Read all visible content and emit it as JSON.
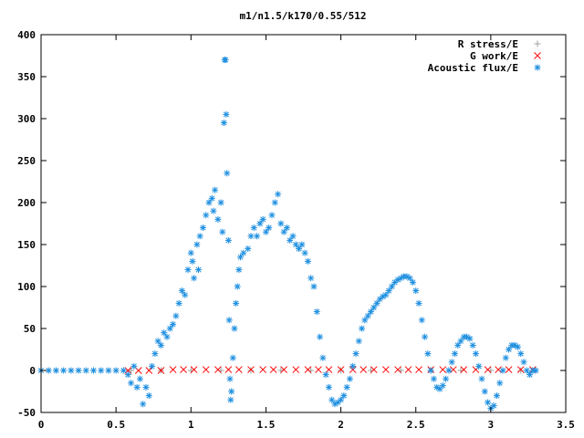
{
  "chart_data": {
    "type": "scatter",
    "title": "m1/n1.5/k170/0.55/512",
    "xlabel": "",
    "ylabel": "",
    "xlim": [
      0,
      3.5
    ],
    "ylim": [
      -50,
      400
    ],
    "x_ticks": [
      "0",
      "0.5",
      "1",
      "1.5",
      "2",
      "2.5",
      "3",
      "3.5"
    ],
    "y_ticks": [
      "-50",
      "0",
      "50",
      "100",
      "150",
      "200",
      "250",
      "300",
      "350",
      "400"
    ],
    "legend_position": "top-right",
    "grid": false,
    "series": [
      {
        "name": "R stress/E",
        "marker": "+",
        "color": "#a0a0a0",
        "points": [
          [
            0.6,
            0
          ],
          [
            0.8,
            0
          ],
          [
            1.0,
            0
          ],
          [
            1.2,
            0
          ],
          [
            1.4,
            0
          ],
          [
            1.6,
            0
          ],
          [
            1.8,
            0
          ],
          [
            2.0,
            0
          ],
          [
            2.2,
            0
          ],
          [
            2.4,
            0
          ],
          [
            2.6,
            0
          ],
          [
            2.8,
            0
          ],
          [
            3.0,
            0
          ],
          [
            3.2,
            0
          ]
        ]
      },
      {
        "name": "G work/E",
        "marker": "x",
        "color": "#ff0000",
        "points": [
          [
            0.58,
            0
          ],
          [
            0.65,
            0
          ],
          [
            0.72,
            0
          ],
          [
            0.8,
            0
          ],
          [
            0.88,
            1
          ],
          [
            0.95,
            1
          ],
          [
            1.02,
            1
          ],
          [
            1.1,
            1
          ],
          [
            1.18,
            1
          ],
          [
            1.25,
            1
          ],
          [
            1.32,
            1
          ],
          [
            1.4,
            1
          ],
          [
            1.48,
            1
          ],
          [
            1.55,
            1
          ],
          [
            1.62,
            1
          ],
          [
            1.7,
            1
          ],
          [
            1.78,
            1
          ],
          [
            1.85,
            1
          ],
          [
            1.92,
            1
          ],
          [
            2.0,
            1
          ],
          [
            2.08,
            1
          ],
          [
            2.15,
            1
          ],
          [
            2.22,
            1
          ],
          [
            2.3,
            1
          ],
          [
            2.38,
            1
          ],
          [
            2.45,
            1
          ],
          [
            2.52,
            1
          ],
          [
            2.6,
            1
          ],
          [
            2.68,
            1
          ],
          [
            2.75,
            1
          ],
          [
            2.82,
            1
          ],
          [
            2.9,
            1
          ],
          [
            2.98,
            1
          ],
          [
            3.05,
            1
          ],
          [
            3.12,
            1
          ],
          [
            3.2,
            1
          ],
          [
            3.28,
            1
          ]
        ]
      },
      {
        "name": "Acoustic flux/E",
        "marker": "*",
        "color": "#1e8fe0",
        "points": [
          [
            0.0,
            0
          ],
          [
            0.05,
            0
          ],
          [
            0.1,
            0
          ],
          [
            0.15,
            0
          ],
          [
            0.2,
            0
          ],
          [
            0.25,
            0
          ],
          [
            0.3,
            0
          ],
          [
            0.35,
            0
          ],
          [
            0.4,
            0
          ],
          [
            0.45,
            0
          ],
          [
            0.5,
            0
          ],
          [
            0.55,
            0
          ],
          [
            0.58,
            -5
          ],
          [
            0.6,
            -15
          ],
          [
            0.62,
            5
          ],
          [
            0.64,
            -20
          ],
          [
            0.66,
            -10
          ],
          [
            0.68,
            -40
          ],
          [
            0.7,
            -20
          ],
          [
            0.72,
            -30
          ],
          [
            0.74,
            5
          ],
          [
            0.76,
            20
          ],
          [
            0.78,
            35
          ],
          [
            0.8,
            30
          ],
          [
            0.82,
            45
          ],
          [
            0.84,
            40
          ],
          [
            0.86,
            50
          ],
          [
            0.88,
            55
          ],
          [
            0.9,
            65
          ],
          [
            0.92,
            80
          ],
          [
            0.94,
            95
          ],
          [
            0.96,
            90
          ],
          [
            0.98,
            120
          ],
          [
            1.0,
            140
          ],
          [
            1.01,
            130
          ],
          [
            1.02,
            110
          ],
          [
            1.04,
            150
          ],
          [
            1.05,
            120
          ],
          [
            1.06,
            160
          ],
          [
            1.08,
            170
          ],
          [
            1.1,
            185
          ],
          [
            1.12,
            200
          ],
          [
            1.14,
            205
          ],
          [
            1.15,
            190
          ],
          [
            1.16,
            215
          ],
          [
            1.18,
            180
          ],
          [
            1.2,
            200
          ],
          [
            1.21,
            165
          ],
          [
            1.22,
            295
          ],
          [
            1.225,
            370
          ],
          [
            1.23,
            370
          ],
          [
            1.235,
            305
          ],
          [
            1.24,
            235
          ],
          [
            1.25,
            155
          ],
          [
            1.255,
            60
          ],
          [
            1.26,
            -10
          ],
          [
            1.265,
            -35
          ],
          [
            1.27,
            -25
          ],
          [
            1.28,
            15
          ],
          [
            1.29,
            50
          ],
          [
            1.3,
            80
          ],
          [
            1.31,
            100
          ],
          [
            1.32,
            120
          ],
          [
            1.33,
            135
          ],
          [
            1.35,
            140
          ],
          [
            1.38,
            145
          ],
          [
            1.4,
            160
          ],
          [
            1.42,
            170
          ],
          [
            1.44,
            160
          ],
          [
            1.46,
            175
          ],
          [
            1.48,
            180
          ],
          [
            1.5,
            165
          ],
          [
            1.52,
            170
          ],
          [
            1.54,
            185
          ],
          [
            1.56,
            200
          ],
          [
            1.58,
            210
          ],
          [
            1.6,
            175
          ],
          [
            1.62,
            165
          ],
          [
            1.64,
            170
          ],
          [
            1.66,
            155
          ],
          [
            1.68,
            160
          ],
          [
            1.7,
            150
          ],
          [
            1.72,
            145
          ],
          [
            1.74,
            150
          ],
          [
            1.76,
            140
          ],
          [
            1.78,
            130
          ],
          [
            1.8,
            110
          ],
          [
            1.82,
            100
          ],
          [
            1.84,
            70
          ],
          [
            1.86,
            40
          ],
          [
            1.88,
            15
          ],
          [
            1.9,
            -5
          ],
          [
            1.92,
            -20
          ],
          [
            1.94,
            -35
          ],
          [
            1.96,
            -40
          ],
          [
            1.98,
            -38
          ],
          [
            2.0,
            -35
          ],
          [
            2.02,
            -30
          ],
          [
            2.04,
            -20
          ],
          [
            2.06,
            -10
          ],
          [
            2.08,
            5
          ],
          [
            2.1,
            20
          ],
          [
            2.12,
            35
          ],
          [
            2.14,
            50
          ],
          [
            2.16,
            60
          ],
          [
            2.18,
            65
          ],
          [
            2.2,
            70
          ],
          [
            2.22,
            75
          ],
          [
            2.24,
            80
          ],
          [
            2.26,
            85
          ],
          [
            2.28,
            88
          ],
          [
            2.3,
            90
          ],
          [
            2.32,
            95
          ],
          [
            2.34,
            100
          ],
          [
            2.36,
            105
          ],
          [
            2.38,
            108
          ],
          [
            2.4,
            110
          ],
          [
            2.42,
            112
          ],
          [
            2.44,
            112
          ],
          [
            2.46,
            110
          ],
          [
            2.48,
            105
          ],
          [
            2.5,
            95
          ],
          [
            2.52,
            80
          ],
          [
            2.54,
            60
          ],
          [
            2.56,
            40
          ],
          [
            2.58,
            20
          ],
          [
            2.6,
            0
          ],
          [
            2.62,
            -10
          ],
          [
            2.64,
            -20
          ],
          [
            2.66,
            -22
          ],
          [
            2.68,
            -18
          ],
          [
            2.7,
            -10
          ],
          [
            2.72,
            0
          ],
          [
            2.74,
            10
          ],
          [
            2.76,
            20
          ],
          [
            2.78,
            30
          ],
          [
            2.8,
            35
          ],
          [
            2.82,
            40
          ],
          [
            2.84,
            40
          ],
          [
            2.86,
            38
          ],
          [
            2.88,
            30
          ],
          [
            2.9,
            20
          ],
          [
            2.92,
            5
          ],
          [
            2.94,
            -10
          ],
          [
            2.96,
            -25
          ],
          [
            2.98,
            -38
          ],
          [
            3.0,
            -45
          ],
          [
            3.02,
            -42
          ],
          [
            3.04,
            -30
          ],
          [
            3.06,
            -15
          ],
          [
            3.08,
            0
          ],
          [
            3.1,
            15
          ],
          [
            3.12,
            25
          ],
          [
            3.14,
            30
          ],
          [
            3.16,
            30
          ],
          [
            3.18,
            28
          ],
          [
            3.2,
            20
          ],
          [
            3.22,
            10
          ],
          [
            3.24,
            0
          ],
          [
            3.26,
            -5
          ],
          [
            3.28,
            0
          ],
          [
            3.3,
            0
          ]
        ]
      }
    ]
  }
}
